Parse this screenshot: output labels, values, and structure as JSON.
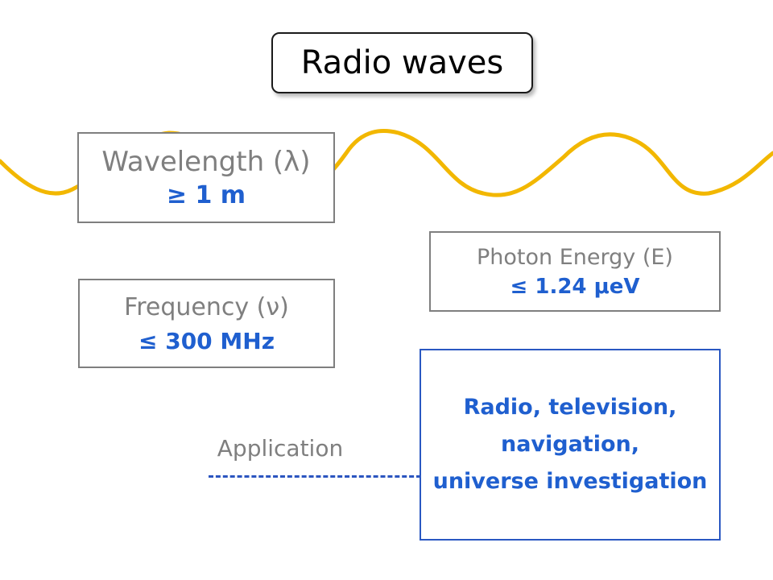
{
  "title": "Radio waves",
  "accent_color": "#1f5fcf",
  "wave_color": "#f2b700",
  "wavelength": {
    "label": "Wavelength (λ)",
    "value": "≥  1 m"
  },
  "frequency": {
    "label": "Frequency (ν)",
    "value": "≤  300 MHz"
  },
  "photon_energy": {
    "label": "Photon Energy (E)",
    "value": "≤  1.24 μeV"
  },
  "application": {
    "label": "Application",
    "lines": [
      "Radio, television,",
      "navigation,",
      "universe investigation"
    ]
  }
}
